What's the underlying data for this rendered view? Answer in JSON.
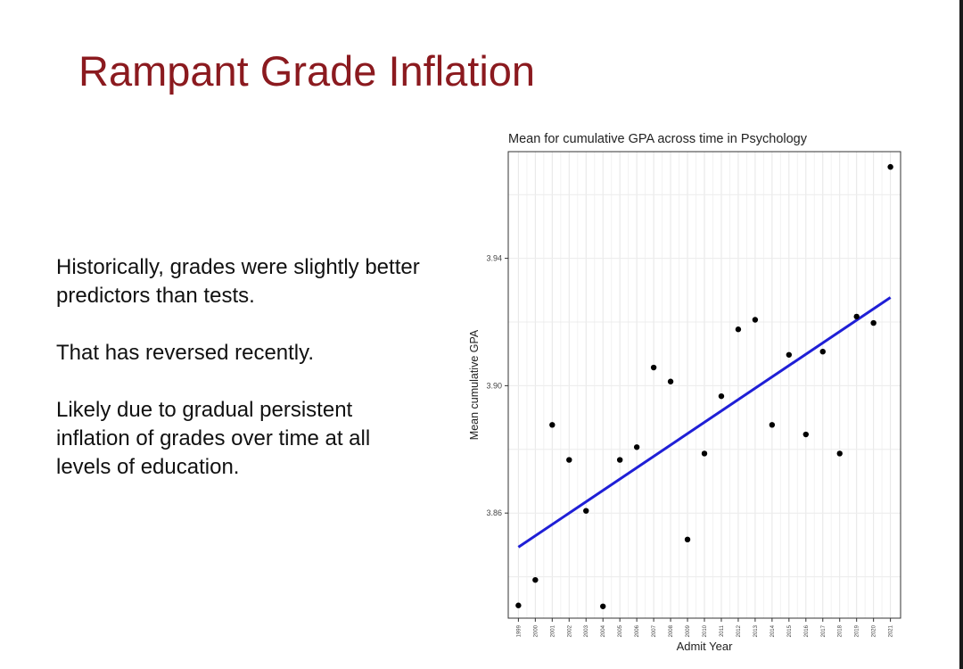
{
  "slide": {
    "title": "Rampant Grade Inflation",
    "paragraphs": [
      "Historically, grades were slightly better predictors than tests.",
      "That has reversed recently.",
      "Likely due to gradual persistent inflation of grades over time at all levels of education."
    ]
  },
  "chart_data": {
    "type": "scatter",
    "title": "Mean for cumulative GPA across time in Psychology",
    "xlabel": "Admit Year",
    "ylabel": "Mean cumulative GPA",
    "x": [
      1999,
      2000,
      2001,
      2002,
      2003,
      2004,
      2005,
      2006,
      2007,
      2008,
      2009,
      2010,
      2011,
      2012,
      2013,
      2014,
      2015,
      2016,
      2017,
      2018,
      2019,
      2020,
      2021
    ],
    "y": [
      3.831,
      3.839,
      3.8877,
      3.8767,
      3.8607,
      3.8307,
      3.8767,
      3.8807,
      3.9057,
      3.9013,
      3.8517,
      3.8787,
      3.8967,
      3.9177,
      3.9207,
      3.8877,
      3.9097,
      3.8847,
      3.9107,
      3.8787,
      3.9217,
      3.9197,
      3.9687
    ],
    "trend_line": {
      "x": [
        1999,
        2021
      ],
      "y": [
        3.8493,
        3.9277
      ],
      "color": "#1f1fd6"
    },
    "yticks": [
      "3.86",
      "3.90",
      "3.94"
    ],
    "ylim": [
      3.827,
      3.9735
    ],
    "xlim": [
      1998.4,
      2021.6
    ],
    "grid": true,
    "legend": "none",
    "point_color": "#000000"
  }
}
